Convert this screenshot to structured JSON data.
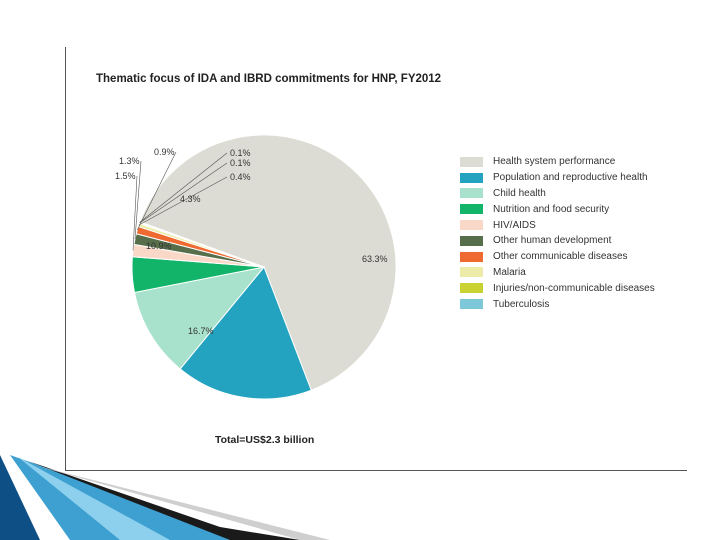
{
  "chart_data": {
    "type": "pie",
    "title": "Thematic focus of IDA and IBRD commitments for HNP, FY2012",
    "total_label": "Total=US$2.3 billion",
    "slices": [
      {
        "name": "Health system performance",
        "value": 63.3,
        "label": "63.3%",
        "color": "#dcdcd4"
      },
      {
        "name": "Population and reproductive health",
        "value": 16.7,
        "label": "16.7%",
        "color": "#23a3c0"
      },
      {
        "name": "Child health",
        "value": 10.9,
        "label": "10.9%",
        "color": "#a8e2cc"
      },
      {
        "name": "Nutrition and food security",
        "value": 4.3,
        "label": "4.3%",
        "color": "#12b46a"
      },
      {
        "name": "HIV/AIDS",
        "value": 1.5,
        "label": "1.5%",
        "color": "#fad8c8"
      },
      {
        "name": "Other human development",
        "value": 1.3,
        "label": "1.3%",
        "color": "#576e4a"
      },
      {
        "name": "Other communicable diseases",
        "value": 0.9,
        "label": "0.9%",
        "color": "#ee6a30"
      },
      {
        "name": "Malaria",
        "value": 0.4,
        "label": "0.4%",
        "color": "#ececa8"
      },
      {
        "name": "Injuries/non-communicable diseases",
        "value": 0.1,
        "label": "0.1%",
        "color": "#cad233"
      },
      {
        "name": "Tuberculosis",
        "value": 0.1,
        "label": "0.1%",
        "color": "#7cc8d8"
      }
    ],
    "legend": [
      "Health system performance",
      "Population and reproductive health",
      "Child health",
      "Nutrition and food security",
      "HIV/AIDS",
      "Other human development",
      "Other communicable diseases",
      "Malaria",
      "Injuries/non-communicable diseases",
      "Tuberculosis"
    ],
    "legend_position": "right"
  }
}
